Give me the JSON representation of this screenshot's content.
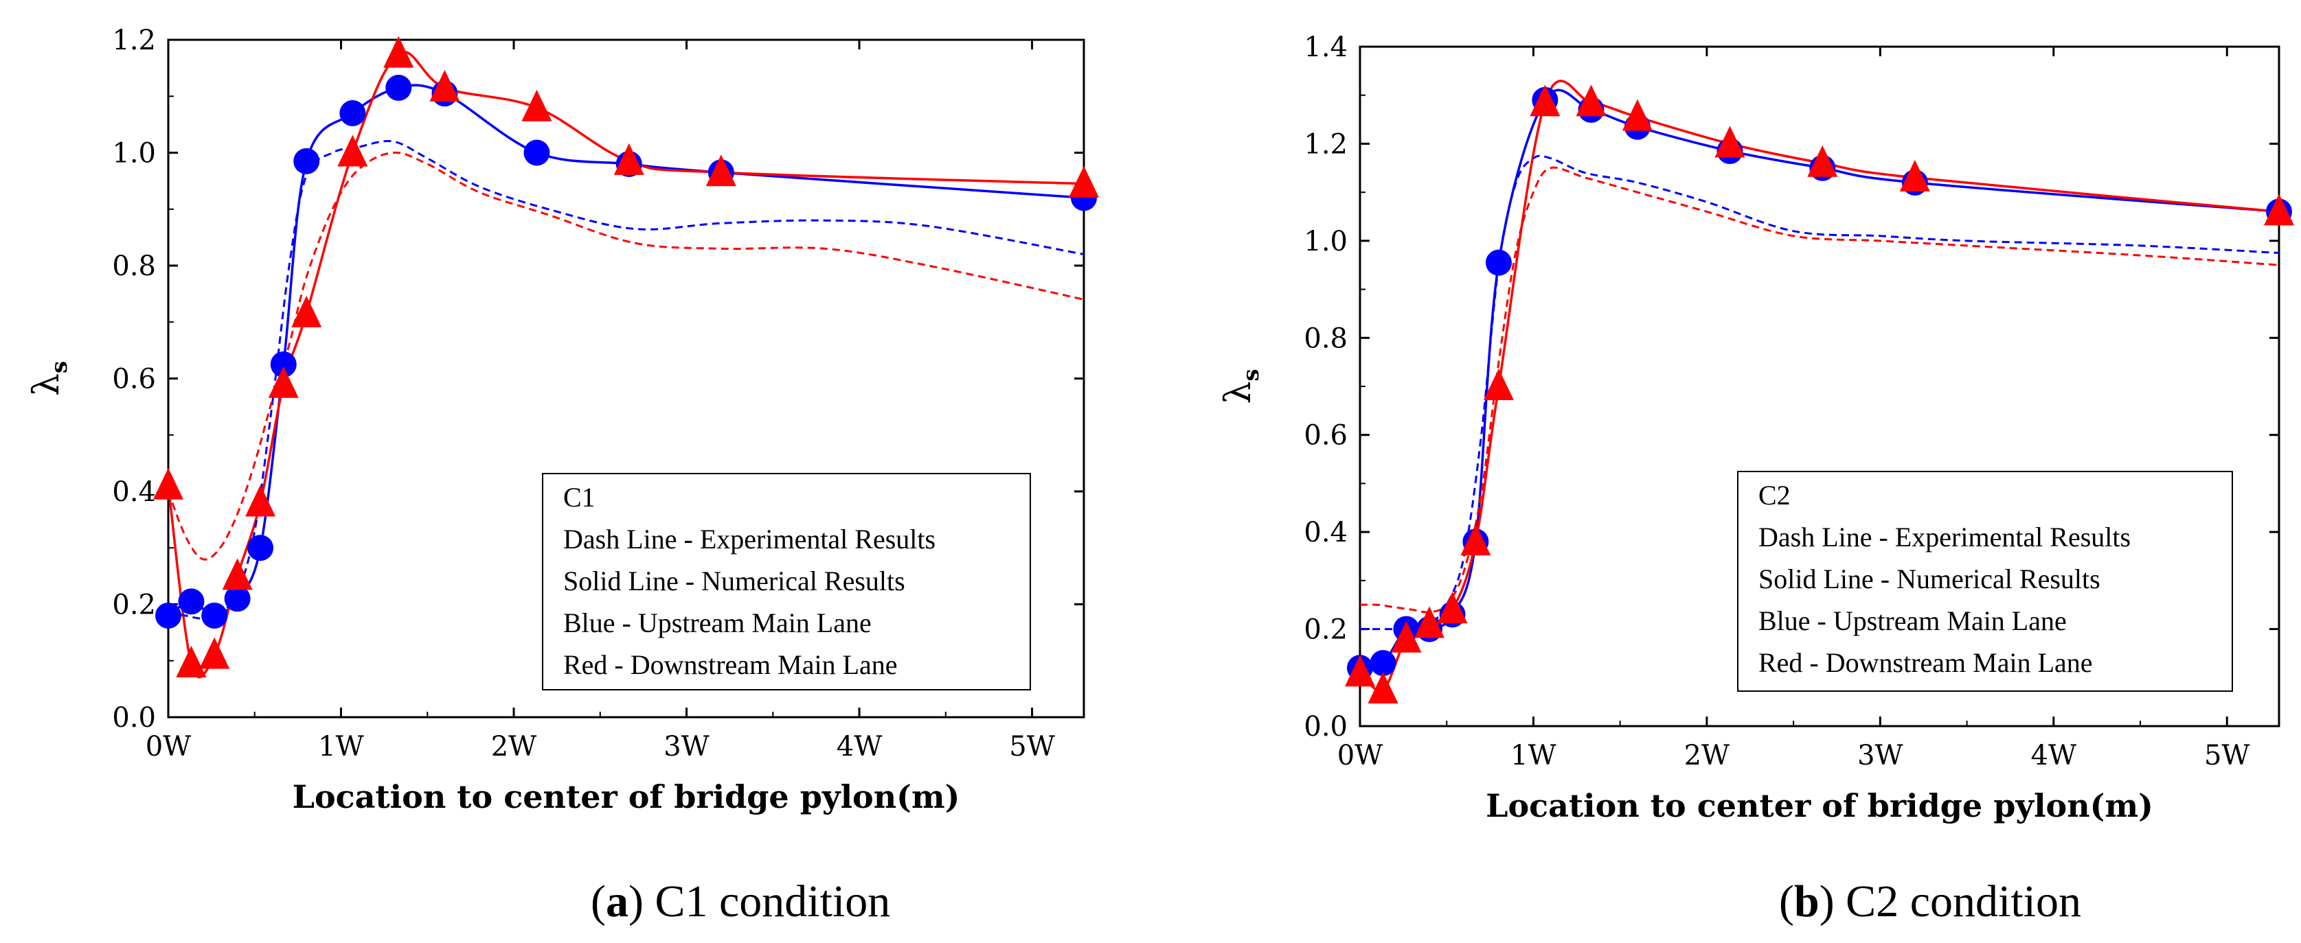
{
  "chart_data": [
    {
      "type": "line",
      "panel_letter": "a",
      "caption_text": "C1 condition",
      "ylabel": "λ",
      "ylabel_sub": "s",
      "xlabel": "Location to center of bridge pylon(m)",
      "xlim": [
        0,
        5.3
      ],
      "ylim": [
        0,
        1.2
      ],
      "xticks": [
        0,
        1,
        2,
        3,
        4,
        5
      ],
      "xtick_labels": [
        "0W",
        "1W",
        "2W",
        "3W",
        "4W",
        "5W"
      ],
      "yticks": [
        0,
        0.2,
        0.4,
        0.6,
        0.8,
        1.0,
        1.2
      ],
      "ytick_labels": [
        "0.0",
        "0.2",
        "0.4",
        "0.6",
        "0.8",
        "1.0",
        "1.2"
      ],
      "legend": [
        "C1",
        "Dash Line - Experimental Results",
        "Solid Line - Numerical Results",
        "Blue - Upstream Main Lane",
        "Red - Downstream Main Lane"
      ],
      "legend_position": "bottom-right",
      "series": [
        {
          "name": "Upstream Main Lane - Numerical",
          "color": "#0000ff",
          "style": "solid",
          "marker": "circle",
          "x": [
            0,
            0.133,
            0.267,
            0.4,
            0.533,
            0.667,
            0.8,
            1.067,
            1.333,
            1.6,
            2.133,
            2.667,
            3.2,
            5.3
          ],
          "y": [
            0.18,
            0.205,
            0.18,
            0.21,
            0.3,
            0.625,
            0.985,
            1.07,
            1.115,
            1.105,
            1.0,
            0.98,
            0.965,
            0.92
          ]
        },
        {
          "name": "Downstream Main Lane - Numerical",
          "color": "#ff0000",
          "style": "solid",
          "marker": "triangle",
          "x": [
            0,
            0.133,
            0.267,
            0.4,
            0.533,
            0.667,
            0.8,
            1.067,
            1.333,
            1.6,
            2.133,
            2.667,
            3.2,
            5.3
          ],
          "y": [
            0.41,
            0.095,
            0.11,
            0.25,
            0.38,
            0.59,
            0.715,
            1.0,
            1.175,
            1.115,
            1.08,
            0.985,
            0.965,
            0.945
          ]
        },
        {
          "name": "Upstream Main Lane - Experimental",
          "color": "#0000ff",
          "style": "dash",
          "marker": "none",
          "x": [
            0,
            0.1,
            0.2,
            0.3,
            0.4,
            0.5,
            0.6,
            0.7,
            0.8,
            0.95,
            1.1,
            1.3,
            1.5,
            1.8,
            2.2,
            2.7,
            3.2,
            3.8,
            4.4,
            5.3
          ],
          "y": [
            0.185,
            0.18,
            0.175,
            0.185,
            0.22,
            0.33,
            0.55,
            0.8,
            0.96,
            1.0,
            1.01,
            1.02,
            0.99,
            0.94,
            0.9,
            0.865,
            0.875,
            0.88,
            0.87,
            0.82
          ]
        },
        {
          "name": "Downstream Main Lane - Experimental",
          "color": "#ff0000",
          "style": "dash",
          "marker": "none",
          "x": [
            0,
            0.1,
            0.2,
            0.3,
            0.4,
            0.5,
            0.6,
            0.7,
            0.8,
            0.95,
            1.1,
            1.3,
            1.5,
            1.8,
            2.2,
            2.7,
            3.2,
            3.8,
            4.4,
            5.3
          ],
          "y": [
            0.4,
            0.32,
            0.28,
            0.3,
            0.36,
            0.45,
            0.56,
            0.66,
            0.78,
            0.9,
            0.97,
            1.0,
            0.98,
            0.93,
            0.89,
            0.84,
            0.83,
            0.83,
            0.8,
            0.74
          ]
        }
      ]
    },
    {
      "type": "line",
      "panel_letter": "b",
      "caption_text": "C2 condition",
      "ylabel": "λ",
      "ylabel_sub": "s",
      "xlabel": "Location to center of bridge pylon(m)",
      "xlim": [
        0,
        5.3
      ],
      "ylim": [
        0,
        1.4
      ],
      "xticks": [
        0,
        1,
        2,
        3,
        4,
        5
      ],
      "xtick_labels": [
        "0W",
        "1W",
        "2W",
        "3W",
        "4W",
        "5W"
      ],
      "yticks": [
        0,
        0.2,
        0.4,
        0.6,
        0.8,
        1.0,
        1.2,
        1.4
      ],
      "ytick_labels": [
        "0.0",
        "0.2",
        "0.4",
        "0.6",
        "0.8",
        "1.0",
        "1.2",
        "1.4"
      ],
      "legend": [
        "C2",
        "Dash Line - Experimental Results",
        "Solid Line - Numerical Results",
        "Blue - Upstream Main Lane",
        "Red - Downstream Main Lane"
      ],
      "legend_position": "bottom-right",
      "series": [
        {
          "name": "Upstream Main Lane - Numerical",
          "color": "#0000ff",
          "style": "solid",
          "marker": "circle",
          "x": [
            0,
            0.133,
            0.267,
            0.4,
            0.533,
            0.667,
            0.8,
            1.067,
            1.333,
            1.6,
            2.133,
            2.667,
            3.2,
            5.3
          ],
          "y": [
            0.12,
            0.13,
            0.2,
            0.2,
            0.23,
            0.38,
            0.955,
            1.29,
            1.27,
            1.235,
            1.185,
            1.15,
            1.12,
            1.06
          ]
        },
        {
          "name": "Downstream Main Lane - Numerical",
          "color": "#ff0000",
          "style": "solid",
          "marker": "triangle",
          "x": [
            0,
            0.133,
            0.267,
            0.4,
            0.533,
            0.667,
            0.8,
            1.067,
            1.333,
            1.6,
            2.133,
            2.667,
            3.2,
            5.3
          ],
          "y": [
            0.11,
            0.075,
            0.18,
            0.21,
            0.24,
            0.38,
            0.7,
            1.285,
            1.285,
            1.255,
            1.2,
            1.16,
            1.13,
            1.06
          ]
        },
        {
          "name": "Upstream Main Lane - Experimental",
          "color": "#0000ff",
          "style": "dash",
          "marker": "none",
          "x": [
            0,
            0.1,
            0.2,
            0.3,
            0.4,
            0.5,
            0.6,
            0.7,
            0.8,
            0.9,
            1.0,
            1.1,
            1.3,
            1.6,
            2.0,
            2.5,
            3.0,
            3.5,
            4.5,
            5.3
          ],
          "y": [
            0.2,
            0.2,
            0.2,
            0.2,
            0.21,
            0.25,
            0.35,
            0.6,
            0.95,
            1.12,
            1.17,
            1.17,
            1.14,
            1.12,
            1.08,
            1.02,
            1.01,
            1.0,
            0.99,
            0.975
          ]
        },
        {
          "name": "Downstream Main Lane - Experimental",
          "color": "#ff0000",
          "style": "dash",
          "marker": "none",
          "x": [
            0,
            0.1,
            0.2,
            0.3,
            0.4,
            0.5,
            0.6,
            0.7,
            0.8,
            0.9,
            1.0,
            1.1,
            1.3,
            1.6,
            2.0,
            2.5,
            3.0,
            3.5,
            4.5,
            5.3
          ],
          "y": [
            0.25,
            0.25,
            0.245,
            0.24,
            0.235,
            0.25,
            0.32,
            0.48,
            0.75,
            0.98,
            1.1,
            1.15,
            1.13,
            1.1,
            1.06,
            1.01,
            1.0,
            0.99,
            0.97,
            0.95
          ]
        }
      ]
    }
  ]
}
